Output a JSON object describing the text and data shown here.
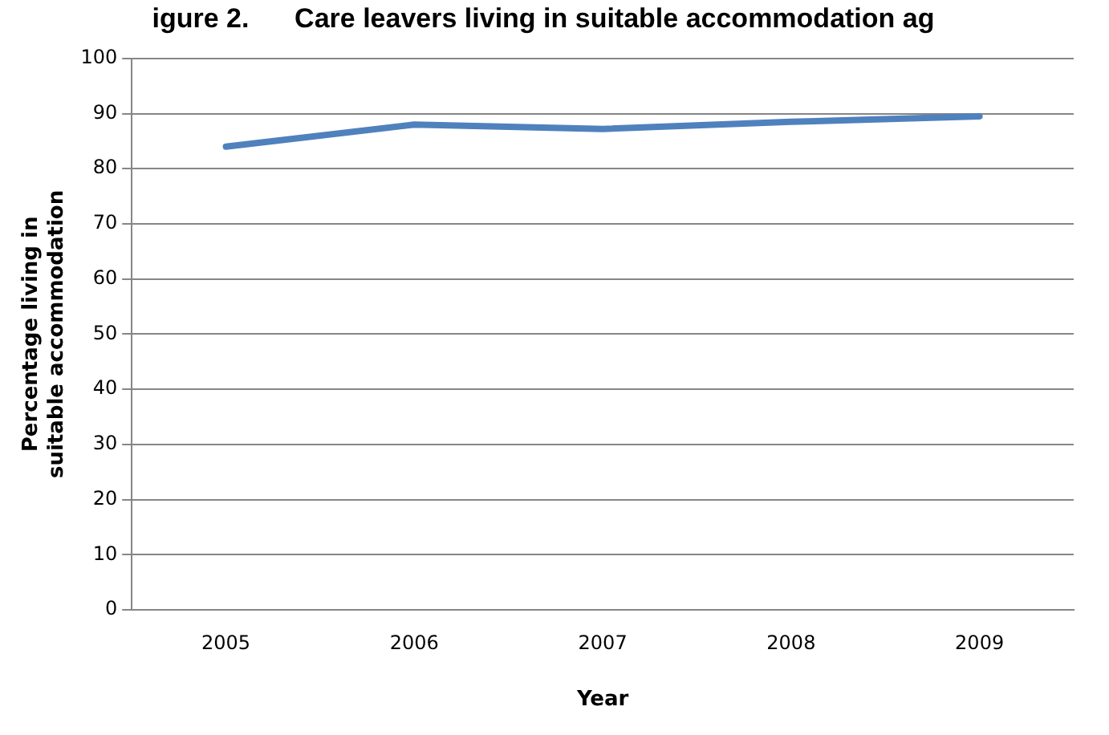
{
  "chart_data": {
    "type": "line",
    "title": "igure 2.      Care leavers living in suitable accommodation ag",
    "categories": [
      "2005",
      "2006",
      "2007",
      "2008",
      "2009"
    ],
    "series": [
      {
        "color": "#4f81bd",
        "values": [
          84,
          88,
          87.2,
          88.5,
          89.5
        ]
      }
    ],
    "xlabel": "Year",
    "ylabel": "Percentage living in suitable accommodation",
    "ylim": [
      0,
      100
    ],
    "yticks": [
      0,
      10,
      20,
      30,
      40,
      50,
      60,
      70,
      80,
      90,
      100
    ],
    "grid": "y",
    "legend": false,
    "marker": "none",
    "line_style": "solid"
  }
}
